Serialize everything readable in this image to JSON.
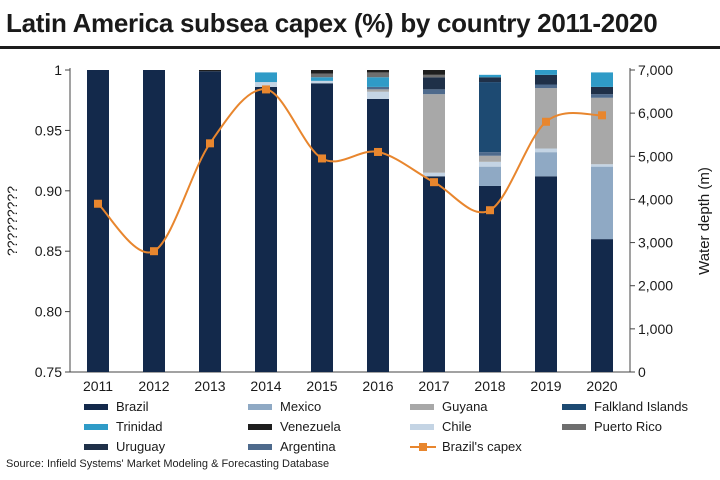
{
  "title": "Latin America subsea capex (%) by country 2011-2020",
  "source": "Source: Infield Systems' Market Modeling & Forecasting Database",
  "chart_data": {
    "type": "bar",
    "stacked": true,
    "categories": [
      "2011",
      "2012",
      "2013",
      "2014",
      "2015",
      "2016",
      "2017",
      "2018",
      "2019",
      "2020"
    ],
    "ylabel": "?????????",
    "ylabel_right": "Water depth (m)",
    "ylim": [
      0.75,
      1
    ],
    "yticks": [
      "0.75",
      "0.80",
      "0.85",
      "0.90",
      "0.95",
      "1"
    ],
    "ylim_right": [
      0,
      7000
    ],
    "yticks_right": [
      "0",
      "1,000",
      "2,000",
      "3,000",
      "4,000",
      "5,000",
      "6,000",
      "7,000"
    ],
    "grid": false,
    "legend": "bottom",
    "colors": {
      "Brazil": "#13294b",
      "Mexico": "#8fa9c4",
      "Guyana": "#a8a8a8",
      "Falkland Islands": "#1d4a72",
      "Trinidad": "#2f9bc7",
      "Venezuela": "#1e1e1e",
      "Chile": "#c4d4e4",
      "Puerto Rico": "#6e6e6e",
      "Uruguay": "#1f3048",
      "Argentina": "#4e6a8c",
      "Brazil's capex": "#e8862e"
    },
    "series": [
      {
        "name": "Brazil",
        "values": [
          1.0,
          1.0,
          0.999,
          0.986,
          0.989,
          0.976,
          0.912,
          0.904,
          0.912,
          0.86
        ]
      },
      {
        "name": "Mexico",
        "values": [
          0,
          0,
          0,
          0,
          0,
          0,
          0,
          0.016,
          0.02,
          0.06
        ]
      },
      {
        "name": "Chile",
        "values": [
          0,
          0,
          0,
          0.004,
          0.002,
          0.006,
          0.003,
          0.004,
          0.003,
          0.002
        ]
      },
      {
        "name": "Guyana",
        "values": [
          0,
          0,
          0,
          0,
          0,
          0.002,
          0.065,
          0.005,
          0.05,
          0.055
        ]
      },
      {
        "name": "Argentina",
        "values": [
          0,
          0,
          0,
          0,
          0,
          0.002,
          0.004,
          0.003,
          0.003,
          0.003
        ]
      },
      {
        "name": "Falkland Islands",
        "values": [
          0,
          0,
          0,
          0,
          0,
          0,
          0,
          0.058,
          0,
          0
        ]
      },
      {
        "name": "Uruguay",
        "values": [
          0,
          0,
          0,
          0,
          0,
          0,
          0.01,
          0.004,
          0.008,
          0.006
        ]
      },
      {
        "name": "Trinidad",
        "values": [
          0,
          0,
          0,
          0.008,
          0.003,
          0.008,
          0,
          0.002,
          0.004,
          0.012
        ]
      },
      {
        "name": "Puerto Rico",
        "values": [
          0,
          0,
          0,
          0,
          0.003,
          0.004,
          0.002,
          0,
          0,
          0
        ]
      },
      {
        "name": "Venezuela",
        "values": [
          0,
          0,
          0.001,
          0,
          0.003,
          0.002,
          0.004,
          0,
          0,
          0
        ]
      }
    ],
    "line_series": {
      "name": "Brazil's capex",
      "axis": "right",
      "values": [
        3900,
        2800,
        5300,
        6550,
        4950,
        5100,
        4400,
        3750,
        5800,
        5950
      ]
    },
    "legend_items": [
      {
        "name": "Brazil",
        "kind": "bar"
      },
      {
        "name": "Mexico",
        "kind": "bar"
      },
      {
        "name": "Guyana",
        "kind": "bar"
      },
      {
        "name": "Falkland Islands",
        "kind": "bar"
      },
      {
        "name": "Trinidad",
        "kind": "bar"
      },
      {
        "name": "Venezuela",
        "kind": "bar"
      },
      {
        "name": "Chile",
        "kind": "bar"
      },
      {
        "name": "Puerto Rico",
        "kind": "bar"
      },
      {
        "name": "Uruguay",
        "kind": "bar"
      },
      {
        "name": "Argentina",
        "kind": "bar"
      },
      {
        "name": "Brazil's capex",
        "kind": "line"
      }
    ]
  }
}
